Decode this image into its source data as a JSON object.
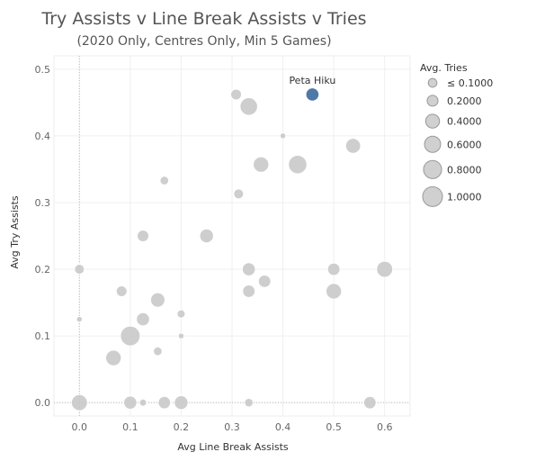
{
  "chart_data": {
    "type": "scatter",
    "title": "Try Assists v Line Break Assists v Tries",
    "subtitle": "(2020 Only, Centres Only, Min 5 Games)",
    "xlabel": "Avg Line Break Assists",
    "ylabel": "Avg Try Assists",
    "xlim": [
      -0.05,
      0.65
    ],
    "ylim": [
      -0.02,
      0.52
    ],
    "xticks": [
      "0.0",
      "0.1",
      "0.2",
      "0.3",
      "0.4",
      "0.5",
      "0.6"
    ],
    "yticks": [
      "0.0",
      "0.1",
      "0.2",
      "0.3",
      "0.4",
      "0.5"
    ],
    "grid": true,
    "colors": {
      "default": "#c9c9c9",
      "highlight": "#4e79a7"
    },
    "legend": {
      "title": "Avg. Tries",
      "position": "right",
      "entries": [
        "≤ 0.1000",
        "0.2000",
        "0.4000",
        "0.6000",
        "0.8000",
        "1.0000"
      ],
      "sizes": [
        0.1,
        0.2,
        0.4,
        0.6,
        0.8,
        1.0
      ]
    },
    "annotation": {
      "label": "Peta Hiku",
      "x": 0.458,
      "y": 0.462
    },
    "points": [
      {
        "x": 0.458,
        "y": 0.462,
        "size": 0.35,
        "highlight": true
      },
      {
        "x": 0.308,
        "y": 0.462,
        "size": 0.2
      },
      {
        "x": 0.333,
        "y": 0.444,
        "size": 0.75
      },
      {
        "x": 0.4,
        "y": 0.4,
        "size": 0.02
      },
      {
        "x": 0.538,
        "y": 0.385,
        "size": 0.5
      },
      {
        "x": 0.357,
        "y": 0.357,
        "size": 0.55
      },
      {
        "x": 0.429,
        "y": 0.357,
        "size": 0.85
      },
      {
        "x": 0.167,
        "y": 0.333,
        "size": 0.1
      },
      {
        "x": 0.313,
        "y": 0.313,
        "size": 0.15
      },
      {
        "x": 0.125,
        "y": 0.25,
        "size": 0.25
      },
      {
        "x": 0.25,
        "y": 0.25,
        "size": 0.4
      },
      {
        "x": 0.0,
        "y": 0.2,
        "size": 0.15
      },
      {
        "x": 0.333,
        "y": 0.2,
        "size": 0.35
      },
      {
        "x": 0.5,
        "y": 0.2,
        "size": 0.3
      },
      {
        "x": 0.6,
        "y": 0.2,
        "size": 0.6
      },
      {
        "x": 0.083,
        "y": 0.167,
        "size": 0.2
      },
      {
        "x": 0.333,
        "y": 0.167,
        "size": 0.3
      },
      {
        "x": 0.364,
        "y": 0.182,
        "size": 0.3
      },
      {
        "x": 0.5,
        "y": 0.167,
        "size": 0.55
      },
      {
        "x": 0.154,
        "y": 0.154,
        "size": 0.45
      },
      {
        "x": 0.2,
        "y": 0.133,
        "size": 0.08
      },
      {
        "x": 0.0,
        "y": 0.125,
        "size": 0.02
      },
      {
        "x": 0.125,
        "y": 0.125,
        "size": 0.35
      },
      {
        "x": 0.1,
        "y": 0.1,
        "size": 1.0
      },
      {
        "x": 0.2,
        "y": 0.1,
        "size": 0.02
      },
      {
        "x": 0.154,
        "y": 0.077,
        "size": 0.1
      },
      {
        "x": 0.067,
        "y": 0.067,
        "size": 0.55
      },
      {
        "x": 0.0,
        "y": 0.0,
        "size": 0.6
      },
      {
        "x": 0.1,
        "y": 0.0,
        "size": 0.35
      },
      {
        "x": 0.125,
        "y": 0.0,
        "size": 0.05
      },
      {
        "x": 0.167,
        "y": 0.0,
        "size": 0.3
      },
      {
        "x": 0.2,
        "y": 0.0,
        "size": 0.4
      },
      {
        "x": 0.333,
        "y": 0.0,
        "size": 0.1
      },
      {
        "x": 0.571,
        "y": 0.0,
        "size": 0.3
      }
    ]
  }
}
